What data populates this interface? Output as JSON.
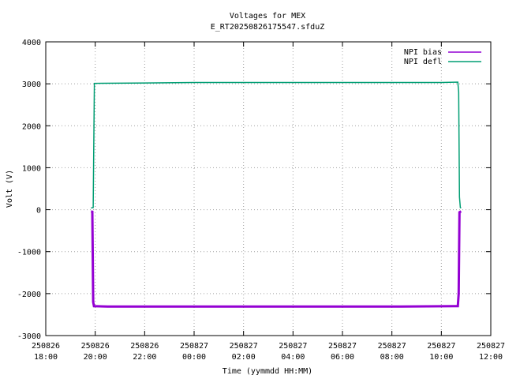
{
  "chart_data": {
    "type": "line",
    "title": "Voltages for MEX",
    "subtitle": "E_RT20250826175547.sfduZ",
    "xlabel": "Time (yymmdd HH:MM)",
    "ylabel": "Volt (V)",
    "xlim": [
      "250826 18:00",
      "250827 12:00"
    ],
    "ylim": [
      -3000,
      4000
    ],
    "grid": true,
    "legend_position": "top-right",
    "y_ticks": [
      "4000",
      "3000",
      "2000",
      "1000",
      "0",
      "-1000",
      "-2000",
      "-3000"
    ],
    "x_ticks": [
      {
        "date": "250826",
        "time": "18:00"
      },
      {
        "date": "250826",
        "time": "20:00"
      },
      {
        "date": "250826",
        "time": "22:00"
      },
      {
        "date": "250827",
        "time": "00:00"
      },
      {
        "date": "250827",
        "time": "02:00"
      },
      {
        "date": "250827",
        "time": "04:00"
      },
      {
        "date": "250827",
        "time": "06:00"
      },
      {
        "date": "250827",
        "time": "08:00"
      },
      {
        "date": "250827",
        "time": "10:00"
      },
      {
        "date": "250827",
        "time": "12:00"
      }
    ],
    "series": [
      {
        "name": "NPI bias",
        "color": "#9400d3",
        "points": [
          [
            "250826 19:50",
            -40
          ],
          [
            "250826 19:53",
            -50
          ],
          [
            "250826 19:55",
            -2200
          ],
          [
            "250826 19:57",
            -2300
          ],
          [
            "250826 20:30",
            -2310
          ],
          [
            "250827 00:00",
            -2310
          ],
          [
            "250827 04:00",
            -2310
          ],
          [
            "250827 08:00",
            -2310
          ],
          [
            "250827 10:30",
            -2300
          ],
          [
            "250827 10:40",
            -2300
          ],
          [
            "250827 10:42",
            -2000
          ],
          [
            "250827 10:44",
            -60
          ],
          [
            "250827 10:48",
            -40
          ]
        ]
      },
      {
        "name": "NPI defl",
        "color": "#009e73",
        "points": [
          [
            "250826 19:50",
            40
          ],
          [
            "250826 19:55",
            50
          ],
          [
            "250826 19:58",
            3010
          ],
          [
            "250826 22:00",
            3020
          ],
          [
            "250827 00:00",
            3030
          ],
          [
            "250827 02:00",
            3030
          ],
          [
            "250827 06:00",
            3030
          ],
          [
            "250827 08:00",
            3030
          ],
          [
            "250827 10:00",
            3030
          ],
          [
            "250827 10:40",
            3040
          ],
          [
            "250827 10:42",
            2800
          ],
          [
            "250827 10:44",
            300
          ],
          [
            "250827 10:46",
            50
          ],
          [
            "250827 10:48",
            40
          ]
        ]
      }
    ]
  }
}
